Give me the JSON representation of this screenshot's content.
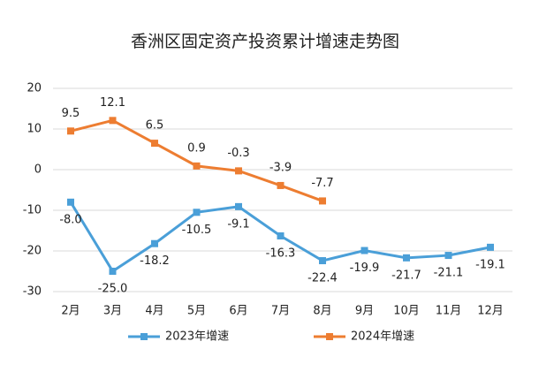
{
  "chart_data": {
    "type": "line",
    "title": "香洲区固定资产投资累计增速走势图",
    "categories": [
      "2月",
      "3月",
      "4月",
      "5月",
      "6月",
      "7月",
      "8月",
      "9月",
      "10月",
      "11月",
      "12月"
    ],
    "series": [
      {
        "name": "2023年增速",
        "color": "#4a9fd8",
        "values": [
          -8.0,
          -25.0,
          -18.2,
          -10.5,
          -9.1,
          -16.3,
          -22.4,
          -19.9,
          -21.7,
          -21.1,
          -19.1
        ],
        "value_labels": [
          "-8.0",
          "-25.0",
          "-18.2",
          "-10.5",
          "-9.1",
          "-16.3",
          "-22.4",
          "-19.9",
          "-21.7",
          "-21.1",
          "-19.1"
        ]
      },
      {
        "name": "2024年增速",
        "color": "#ed7d31",
        "values": [
          9.5,
          12.1,
          6.5,
          0.9,
          -0.3,
          -3.9,
          -7.7,
          null,
          null,
          null,
          null
        ],
        "value_labels": [
          "9.5",
          "12.1",
          "6.5",
          "0.9",
          "-0.3",
          "-3.9",
          "-7.7",
          null,
          null,
          null,
          null
        ]
      }
    ],
    "ylim": [
      -30,
      20
    ],
    "yticks": [
      20,
      10,
      0,
      -10,
      -20,
      -30
    ],
    "grid": true,
    "legend": "bottom"
  }
}
